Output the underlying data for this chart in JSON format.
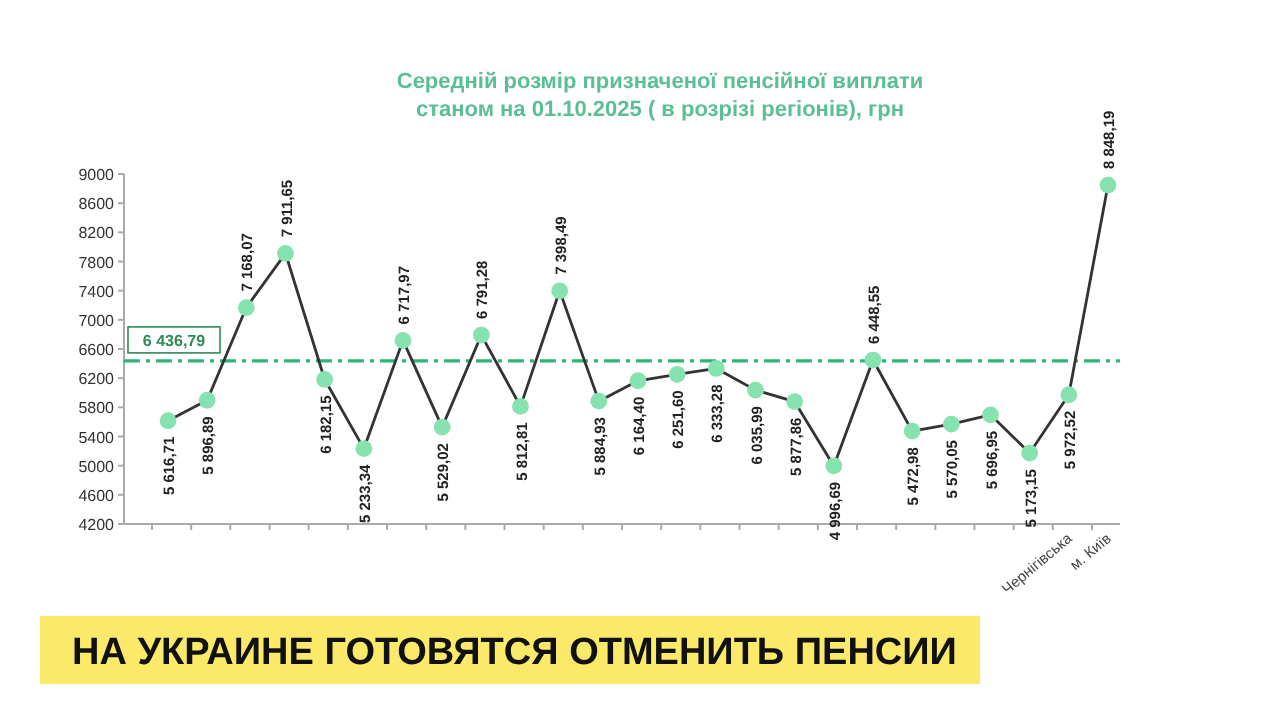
{
  "chart_data": {
    "type": "line",
    "title": "Середній розмір призначеної пенсійної виплати\nстаном на 01.10.2025 ( в розрізі регіонів), грн",
    "categories": [
      null,
      null,
      null,
      null,
      null,
      null,
      null,
      null,
      null,
      null,
      null,
      null,
      null,
      null,
      null,
      null,
      null,
      null,
      null,
      null,
      null,
      null,
      null,
      "Чернігівська",
      "м. Київ"
    ],
    "series": [
      {
        "color": "#333333",
        "values": [
          5616.71,
          5896.89,
          7168.07,
          7911.65,
          6182.15,
          5233.34,
          6717.97,
          5529.02,
          6791.28,
          5812.81,
          7398.49,
          5884.93,
          6164.4,
          6251.6,
          6333.28,
          6035.99,
          5877.86,
          4996.69,
          6448.55,
          5472.98,
          5570.05,
          5696.95,
          5173.15,
          5972.52,
          8848.19
        ],
        "value_labels": [
          "5 616,71",
          "5 896,89",
          "7 168,07",
          "7 911,65",
          "6 182,15",
          "5 233,34",
          "6 717,97",
          "5 529,02",
          "6 791,28",
          "5 812,81",
          "7 398,49",
          "5 884,93",
          "6 164,40",
          "6 251,60",
          "6 333,28",
          "6 035,99",
          "5 877,86",
          "4 996,69",
          "6 448,55",
          "5 472,98",
          "5 570,05",
          "5 696,95",
          "5 173,15",
          "5 972,52",
          "8 848,19"
        ]
      }
    ],
    "marker": "circle",
    "grid": false,
    "ylim": [
      4200,
      9000
    ],
    "yticks": [
      4200,
      4600,
      5000,
      5400,
      5800,
      6200,
      6600,
      7000,
      7400,
      7800,
      8200,
      8600,
      9000
    ],
    "ref_lines": [
      {
        "axis": "y",
        "value": 6436.79,
        "label": "6 436,79",
        "color": "#2bb673",
        "line_style": "dashed"
      }
    ],
    "annotations": [
      "НА УКРАИНЕ ГОТОВЯТСЯ ОТМЕНИТЬ ПЕНСИИ"
    ]
  }
}
